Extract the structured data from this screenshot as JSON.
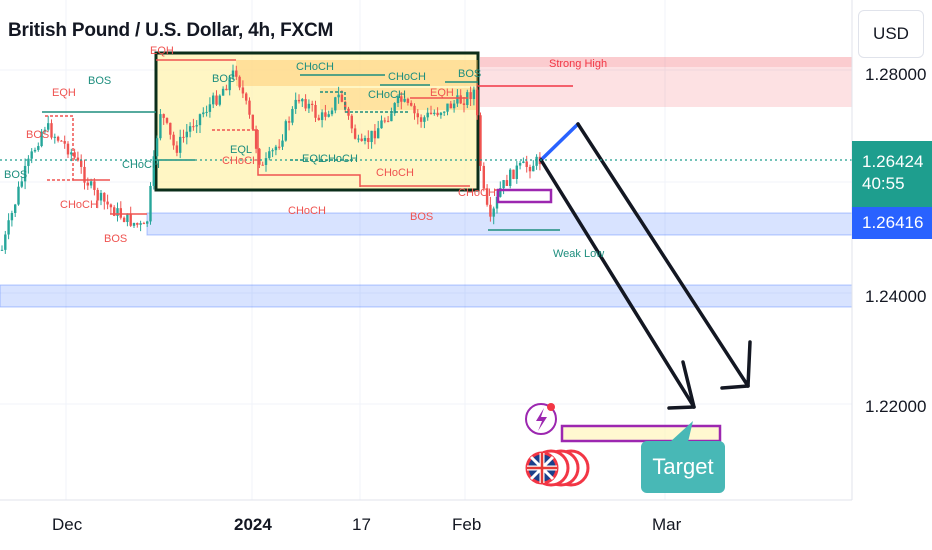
{
  "title": "British Pound / U.S. Dollar, 4h, FXCM",
  "currency": "USD",
  "last_price": "1.26424",
  "countdown": "40:55",
  "level_price": "1.26416",
  "target_label": "Target",
  "colors": {
    "up": "#26a69a",
    "down": "#ef5350",
    "zone_blue": "#2962ff",
    "zone_red": "#f23645",
    "box_fill": "#fff3b0",
    "arrow": "#131722",
    "purple": "#9c27b0"
  },
  "chart_data": {
    "type": "candlestick",
    "symbol": "GBPUSD",
    "timeframe": "4h",
    "y_ticks": [
      "1.28000",
      "1.24000",
      "1.22000"
    ],
    "x_ticks": [
      "Dec",
      "2024",
      "17",
      "Feb",
      "Mar"
    ],
    "annotations": {
      "left": [
        "BOS",
        "EQH",
        "BOS",
        "BOS",
        "CHoCH",
        "CHoCH",
        "BOS"
      ],
      "box": [
        "EQH",
        "BOS",
        "CHoCH",
        "CHoCH",
        "CHoCH",
        "EQH",
        "BOS",
        "EQL",
        "CHoCH",
        "EQL",
        "CHoCH",
        "CHoCH"
      ],
      "below_box": [
        "CHoCH",
        "BOS",
        "CHoCH"
      ],
      "right": [
        "Strong High",
        "Weak Low"
      ]
    }
  }
}
